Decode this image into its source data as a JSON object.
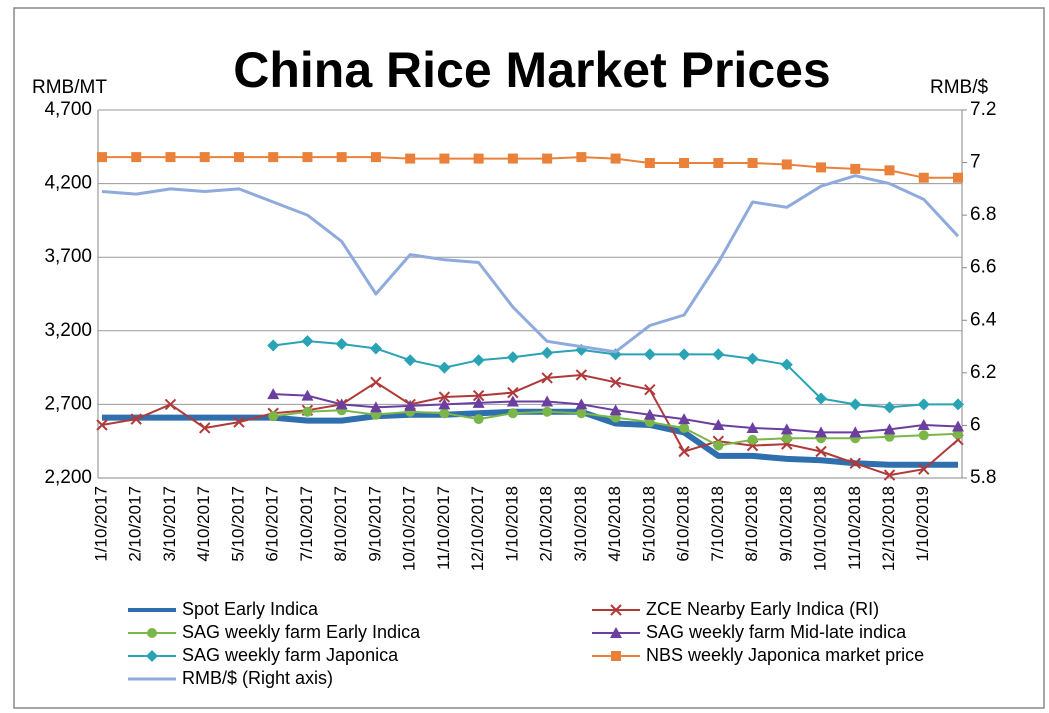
{
  "chart_data": {
    "type": "line",
    "title": "China Rice Market Prices",
    "y_label": "RMB/MT",
    "y2_label": "RMB/$",
    "categories": [
      "1/10/2017",
      "2/10/2017",
      "3/10/2017",
      "4/10/2017",
      "5/10/2017",
      "6/10/2017",
      "7/10/2017",
      "8/10/2017",
      "9/10/2017",
      "10/10/2017",
      "11/10/2017",
      "12/10/2017",
      "1/10/2018",
      "2/10/2018",
      "3/10/2018",
      "4/10/2018",
      "5/10/2018",
      "6/10/2018",
      "7/10/2018",
      "8/10/2018",
      "9/10/2018",
      "10/10/2018",
      "11/10/2018",
      "12/10/2018",
      "1/10/2019",
      null
    ],
    "ylim": [
      2200,
      4700
    ],
    "yticks": [
      {
        "value": 2200,
        "label": "2,200"
      },
      {
        "value": 2700,
        "label": "2,700"
      },
      {
        "value": 3200,
        "label": "3,200"
      },
      {
        "value": 3700,
        "label": "3,700"
      },
      {
        "value": 4200,
        "label": "4,200"
      },
      {
        "value": 4700,
        "label": "4,700"
      }
    ],
    "y2lim": [
      5.8,
      7.2
    ],
    "y2ticks": [
      5.8,
      6,
      6.2,
      6.4,
      6.6,
      6.8,
      7,
      7.2
    ],
    "grid": true,
    "legend": "bottom",
    "series": [
      {
        "name": "Spot Early Indica",
        "color": "#2f6fad",
        "marker": "none",
        "width": 6,
        "values": [
          2610,
          2610,
          2610,
          2610,
          2610,
          2610,
          2590,
          2590,
          2620,
          2630,
          2630,
          2640,
          2650,
          2650,
          2650,
          2570,
          2560,
          2510,
          2350,
          2350,
          2330,
          2320,
          2300,
          2290,
          2290,
          2290
        ]
      },
      {
        "name": "ZCE Nearby Early Indica (RI)",
        "color": "#b03a3a",
        "marker": "x",
        "width": 2,
        "values": [
          2560,
          2600,
          2700,
          2540,
          2580,
          2640,
          2660,
          2700,
          2850,
          2700,
          2750,
          2760,
          2780,
          2880,
          2900,
          2850,
          2800,
          2380,
          2450,
          2420,
          2430,
          2380,
          2300,
          2220,
          2260,
          2460
        ]
      },
      {
        "name": "SAG weekly farm Early Indica",
        "color": "#7ab648",
        "marker": "circle",
        "width": 2,
        "values": [
          null,
          null,
          null,
          null,
          null,
          2620,
          2650,
          2660,
          2630,
          2650,
          2640,
          2600,
          2640,
          2650,
          2640,
          2610,
          2580,
          2540,
          2420,
          2460,
          2470,
          2470,
          2470,
          2480,
          2490,
          2500
        ]
      },
      {
        "name": "SAG weekly farm Mid-late indica",
        "color": "#6b3fa0",
        "marker": "triangle",
        "width": 2,
        "values": [
          null,
          null,
          null,
          null,
          null,
          2770,
          2760,
          2700,
          2680,
          2690,
          2700,
          2710,
          2720,
          2720,
          2700,
          2660,
          2630,
          2600,
          2560,
          2540,
          2530,
          2510,
          2510,
          2530,
          2560,
          2550
        ]
      },
      {
        "name": "SAG weekly farm Japonica",
        "color": "#2aa3b5",
        "marker": "diamond",
        "width": 2,
        "values": [
          null,
          null,
          null,
          null,
          null,
          3100,
          3130,
          3110,
          3080,
          3000,
          2950,
          3000,
          3020,
          3050,
          3070,
          3040,
          3040,
          3040,
          3040,
          3010,
          2970,
          2740,
          2700,
          2680,
          2700,
          2700
        ]
      },
      {
        "name": "NBS weekly Japonica market price",
        "color": "#e9813a",
        "marker": "square",
        "width": 2,
        "values": [
          4380,
          4380,
          4380,
          4380,
          4380,
          4380,
          4380,
          4380,
          4380,
          4370,
          4370,
          4370,
          4370,
          4370,
          4380,
          4370,
          4340,
          4340,
          4340,
          4340,
          4330,
          4310,
          4300,
          4290,
          4240,
          4240
        ]
      },
      {
        "name": "RMB/$ (Right axis)",
        "color": "#8faadc",
        "marker": "none",
        "width": 3,
        "axis": "y2",
        "values": [
          6.89,
          6.88,
          6.9,
          6.89,
          6.9,
          6.85,
          6.8,
          6.7,
          6.5,
          6.65,
          6.63,
          6.62,
          6.45,
          6.32,
          6.3,
          6.28,
          6.38,
          6.42,
          6.62,
          6.85,
          6.83,
          6.91,
          6.95,
          6.92,
          6.86,
          6.72
        ]
      }
    ]
  }
}
